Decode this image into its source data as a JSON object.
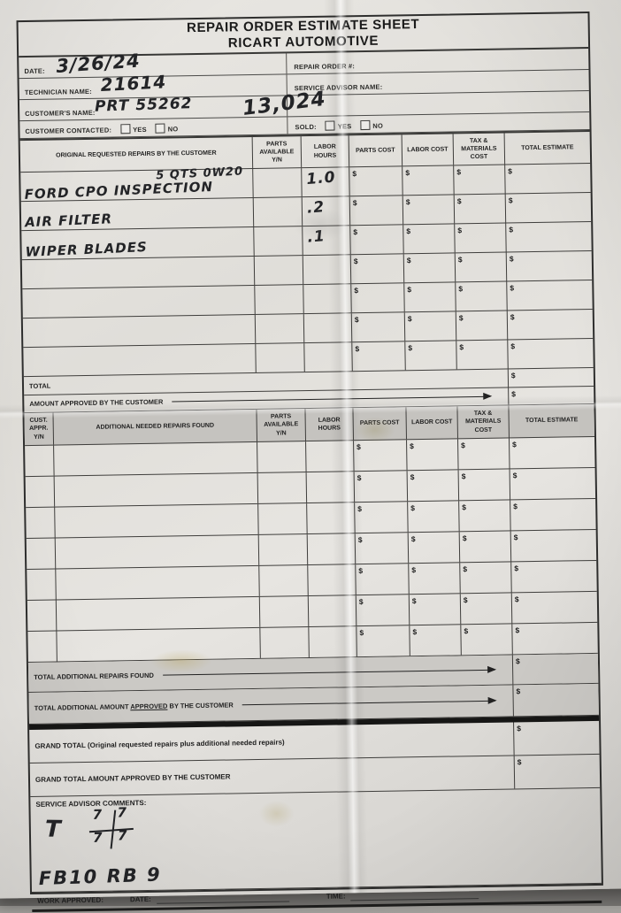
{
  "currency": "$",
  "header": {
    "line1": "REPAIR ORDER ESTIMATE SHEET",
    "line2": "RICART AUTOMOTIVE"
  },
  "info": {
    "date_label": "DATE:",
    "date_value": "3/26/24",
    "repair_order_label": "REPAIR ORDER #:",
    "technician_label": "TECHNICIAN NAME:",
    "technician_value": "21614",
    "service_advisor_label": "SERVICE ADVISOR NAME:",
    "customer_label": "CUSTOMER'S NAME:",
    "customer_value": "PRT 55262",
    "mileage_value": "13,024",
    "customer_contacted_label": "CUSTOMER CONTACTED:",
    "sold_label": "SOLD:",
    "yes_label": "YES",
    "no_label": "NO"
  },
  "original_table": {
    "headers": [
      "ORIGINAL REQUESTED REPAIRS BY THE CUSTOMER",
      "PARTS AVAILABLE Y/N",
      "LABOR HOURS",
      "PARTS COST",
      "LABOR COST",
      "TAX & MATERIALS COST",
      "TOTAL ESTIMATE"
    ],
    "rows": [
      {
        "desc": "FORD CPO INSPECTION",
        "note": "5 QTS 0W20",
        "labor": "1.0"
      },
      {
        "desc": "AIR FILTER",
        "note": "",
        "labor": ".2"
      },
      {
        "desc": "WIPER BLADES",
        "note": "",
        "labor": ".1"
      },
      {
        "desc": "",
        "note": "",
        "labor": ""
      },
      {
        "desc": "",
        "note": "",
        "labor": ""
      },
      {
        "desc": "",
        "note": "",
        "labor": ""
      },
      {
        "desc": "",
        "note": "",
        "labor": ""
      }
    ],
    "total_label": "TOTAL",
    "amount_approved_label": "AMOUNT APPROVED BY THE CUSTOMER"
  },
  "additional_table": {
    "headers": [
      "CUST. APPR. Y/N",
      "ADDITIONAL NEEDED REPAIRS FOUND",
      "PARTS AVAILABLE Y/N",
      "LABOR HOURS",
      "PARTS COST",
      "LABOR COST",
      "TAX & MATERIALS COST",
      "TOTAL ESTIMATE"
    ],
    "row_count": 7,
    "band_total_additional": "TOTAL ADDITIONAL REPAIRS FOUND",
    "band_approved_prefix": "TOTAL ADDITIONAL AMOUNT ",
    "band_approved_word": "APPROVED",
    "band_approved_suffix": " BY THE CUSTOMER"
  },
  "grand": {
    "grand_total_label": "GRAND TOTAL (Original requested repairs plus additional needed repairs)",
    "grand_total_approved_label": "GRAND TOTAL AMOUNT APPROVED BY THE CUSTOMER"
  },
  "comments": {
    "label": "SERVICE ADVISOR COMMENTS:",
    "t_mark": "T",
    "tread_values": [
      "7",
      "7",
      "7",
      "7"
    ],
    "bottom_note": "FB10    RB 9"
  },
  "footer": {
    "work_approved_label": "WORK APPROVED:",
    "date_label": "DATE:",
    "time_label": "TIME:"
  }
}
